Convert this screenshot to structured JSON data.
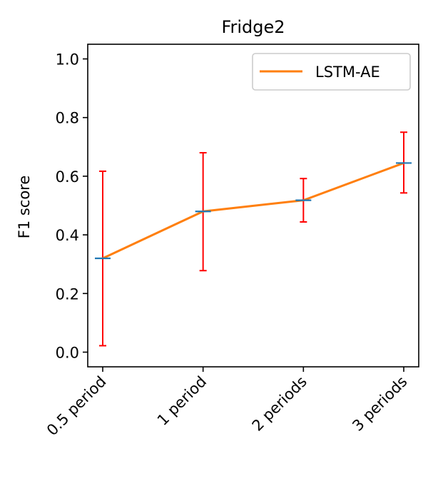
{
  "chart_data": {
    "type": "line",
    "title": "Fridge2",
    "xlabel": "",
    "ylabel": "F1 score",
    "categories": [
      "0.5 period",
      "1 period",
      "2 periods",
      "3 periods"
    ],
    "ylim": [
      -0.05,
      1.05
    ],
    "yticks": [
      0.0,
      0.2,
      0.4,
      0.6,
      0.8,
      1.0
    ],
    "ytick_labels": [
      "0.0",
      "0.2",
      "0.4",
      "0.6",
      "0.8",
      "1.0"
    ],
    "grid": false,
    "legend_position": "upper-right",
    "series": [
      {
        "name": "LSTM-AE",
        "values": [
          0.32,
          0.48,
          0.518,
          0.645
        ],
        "err_low": [
          0.022,
          0.278,
          0.444,
          0.543
        ],
        "err_high": [
          0.617,
          0.68,
          0.592,
          0.75
        ],
        "color": "#ff7f0e",
        "marker_color": "#1f77b4",
        "error_color": "#ff0000"
      }
    ]
  }
}
